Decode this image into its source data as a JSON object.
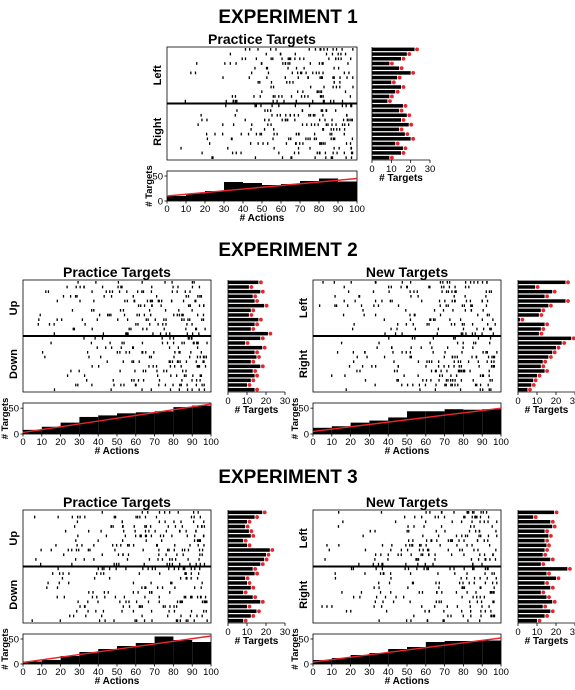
{
  "experiments": [
    {
      "title": "EXPERIMENT 1",
      "panels": [
        {
          "title": "Practice Targets",
          "groups": [
            "Left",
            "Right"
          ],
          "raster_rows_per_group": 12,
          "hist_values": [
            22,
            18,
            15,
            9,
            14,
            20,
            13,
            10,
            15,
            12,
            9,
            8,
            16,
            14,
            18,
            15,
            19,
            14,
            17,
            20,
            12,
            16,
            15,
            9
          ]
        }
      ]
    },
    {
      "title": "EXPERIMENT 2",
      "panels": [
        {
          "title": "Practice Targets",
          "groups": [
            "Up",
            "Down"
          ],
          "raster_rows_per_group": 12,
          "hist_values": [
            16,
            11,
            17,
            13,
            14,
            19,
            12,
            11,
            16,
            14,
            12,
            21,
            17,
            9,
            18,
            14,
            15,
            12,
            17,
            13,
            14,
            12,
            10,
            14
          ]
        },
        {
          "title": "New Targets",
          "groups": [
            "Left",
            "Right"
          ],
          "raster_rows_per_group": 12,
          "hist_values": [
            25,
            9,
            18,
            14,
            25,
            16,
            12,
            11,
            1,
            14,
            12,
            11,
            28,
            23,
            20,
            18,
            16,
            13,
            12,
            14,
            10,
            8,
            7,
            5
          ]
        }
      ]
    },
    {
      "title": "EXPERIMENT 3",
      "panels": [
        {
          "title": "Practice Targets",
          "groups": [
            "Up",
            "Down"
          ],
          "raster_rows_per_group": 12,
          "hist_values": [
            18,
            14,
            10,
            9,
            11,
            12,
            8,
            10,
            22,
            20,
            19,
            17,
            13,
            14,
            9,
            10,
            12,
            8,
            13,
            17,
            10,
            15,
            12,
            8
          ]
        },
        {
          "title": "New Targets",
          "groups": [
            "Left",
            "Right"
          ],
          "raster_rows_per_group": 12,
          "hist_values": [
            19,
            8,
            17,
            18,
            14,
            16,
            14,
            15,
            14,
            13,
            17,
            12,
            26,
            15,
            20,
            14,
            17,
            12,
            15,
            18,
            13,
            17,
            14,
            10
          ]
        }
      ]
    }
  ],
  "raster_xlim": [
    0,
    100
  ],
  "hist_axis": {
    "xlabel": "# Targets",
    "xticks": [
      0,
      10,
      20,
      30
    ]
  },
  "cum_axis": {
    "xlabel": "# Actions",
    "ylabel": "# Targets",
    "xticks": [
      0,
      10,
      20,
      30,
      40,
      50,
      60,
      70,
      80,
      90,
      100
    ],
    "yticks": [
      0,
      50
    ]
  },
  "chart_data": [
    {
      "type": "bar",
      "title": "Practice Targets",
      "experiment": "EXPERIMENT 1",
      "xlabel": "# Actions",
      "ylabel": "# Targets",
      "x": [
        5,
        15,
        25,
        35,
        45,
        55,
        65,
        75,
        85,
        95
      ],
      "values": [
        10,
        15,
        20,
        38,
        36,
        32,
        34,
        40,
        45,
        39
      ],
      "ylim": [
        0,
        60
      ],
      "xlim": [
        0,
        100
      ],
      "reference_line": {
        "x": [
          0,
          100
        ],
        "y": [
          10,
          45
        ],
        "color": "#e8242c"
      }
    },
    {
      "type": "bar",
      "title": "Practice Targets",
      "experiment": "EXPERIMENT 2",
      "xlabel": "# Actions",
      "ylabel": "# Targets",
      "x": [
        5,
        15,
        25,
        35,
        45,
        55,
        65,
        75,
        85,
        95
      ],
      "values": [
        8,
        14,
        22,
        33,
        36,
        40,
        42,
        44,
        52,
        55
      ],
      "ylim": [
        0,
        60
      ],
      "xlim": [
        0,
        100
      ],
      "reference_line": {
        "x": [
          0,
          100
        ],
        "y": [
          3,
          58
        ],
        "color": "#e8242c"
      }
    },
    {
      "type": "bar",
      "title": "New Targets",
      "experiment": "EXPERIMENT 2",
      "xlabel": "# Actions",
      "ylabel": "# Targets",
      "x": [
        5,
        15,
        25,
        35,
        45,
        55,
        65,
        75,
        85,
        95
      ],
      "values": [
        12,
        15,
        22,
        26,
        32,
        44,
        44,
        48,
        47,
        48
      ],
      "ylim": [
        0,
        60
      ],
      "xlim": [
        0,
        100
      ],
      "reference_line": {
        "x": [
          0,
          100
        ],
        "y": [
          5,
          50
        ],
        "color": "#e8242c"
      }
    },
    {
      "type": "bar",
      "title": "Practice Targets",
      "experiment": "EXPERIMENT 3",
      "xlabel": "# Actions",
      "ylabel": "# Targets",
      "x": [
        5,
        15,
        25,
        35,
        45,
        55,
        65,
        75,
        85,
        95
      ],
      "values": [
        5,
        8,
        16,
        24,
        30,
        36,
        42,
        55,
        48,
        44
      ],
      "ylim": [
        0,
        60
      ],
      "xlim": [
        0,
        100
      ],
      "reference_line": {
        "x": [
          0,
          100
        ],
        "y": [
          3,
          56
        ],
        "color": "#e8242c"
      }
    },
    {
      "type": "bar",
      "title": "New Targets",
      "experiment": "EXPERIMENT 3",
      "xlabel": "# Actions",
      "ylabel": "# Targets",
      "x": [
        5,
        15,
        25,
        35,
        45,
        55,
        65,
        75,
        85,
        95
      ],
      "values": [
        8,
        12,
        18,
        22,
        30,
        34,
        44,
        46,
        46,
        47
      ],
      "ylim": [
        0,
        60
      ],
      "xlim": [
        0,
        100
      ],
      "reference_line": {
        "x": [
          0,
          100
        ],
        "y": [
          4,
          52
        ],
        "color": "#e8242c"
      }
    }
  ]
}
